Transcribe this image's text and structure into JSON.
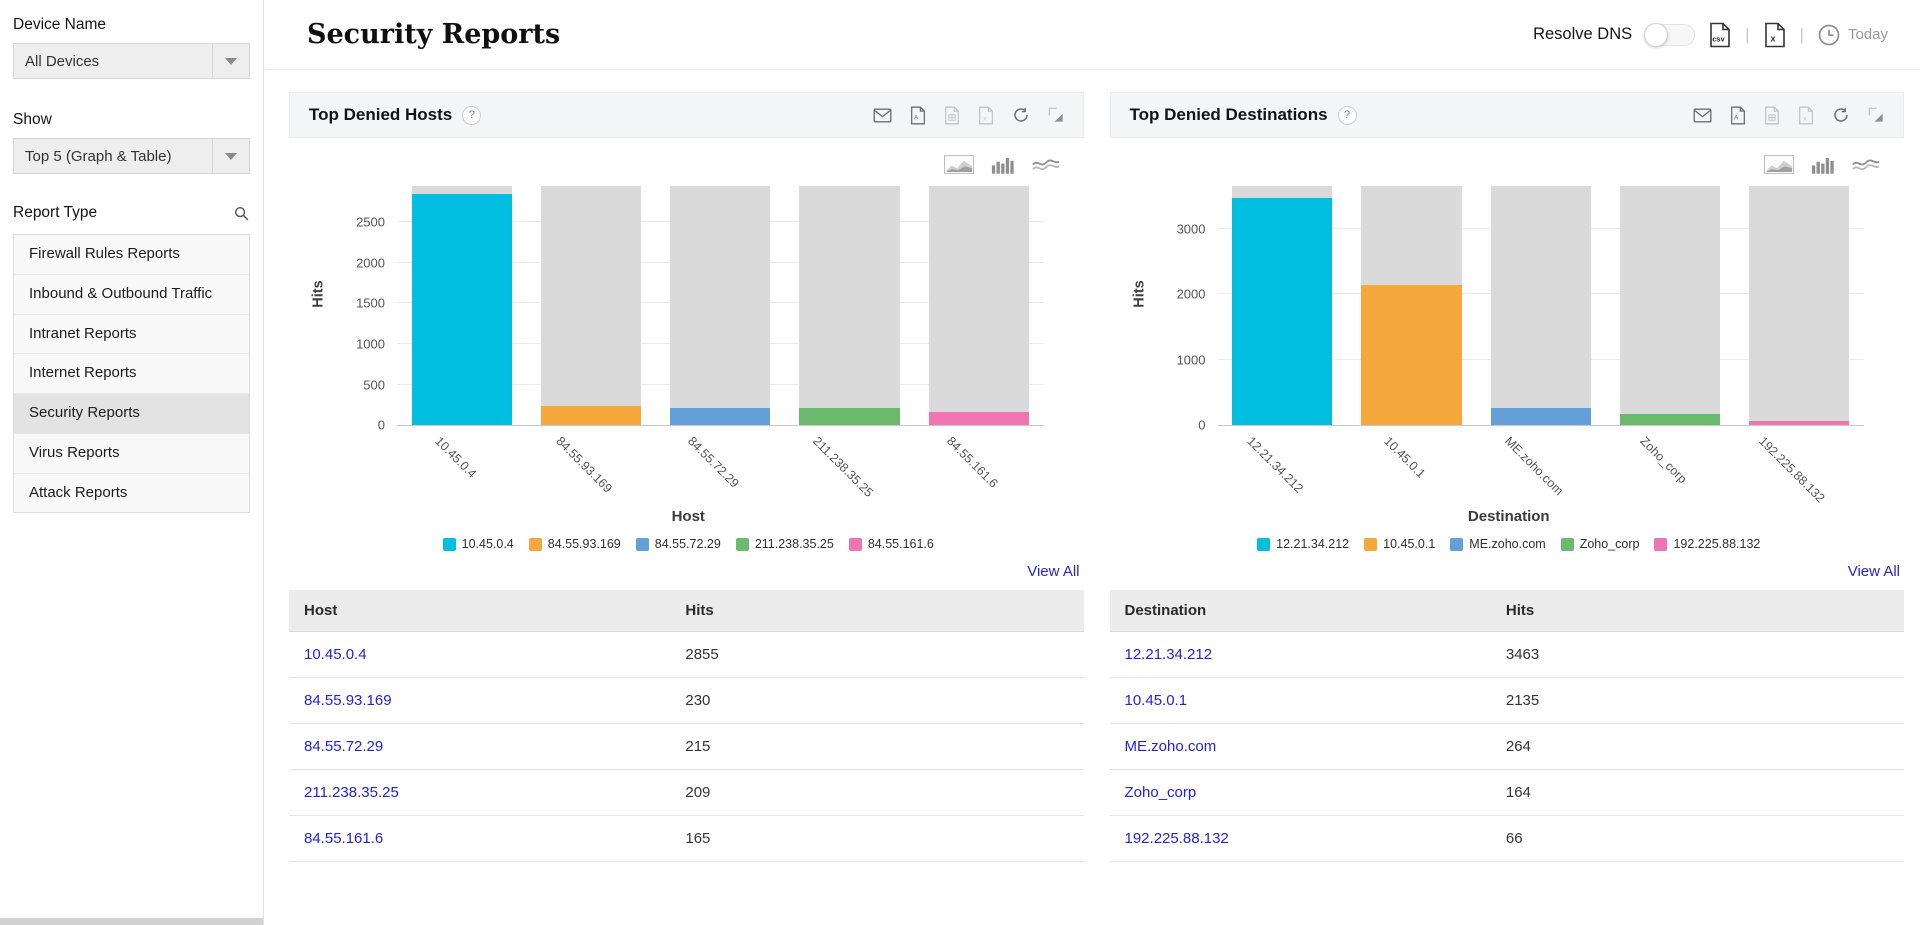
{
  "colors": {
    "series": [
      "#00bee0",
      "#f5a83c",
      "#64a0d8",
      "#6abb6e",
      "#ef74b2"
    ],
    "bar_track": "#dadada",
    "link": "#2222df",
    "panel_header_bg": "#f4f5f7",
    "selected_item_bg": "#e3e3e3"
  },
  "sidebar": {
    "device_label": "Device Name",
    "device_value": "All Devices",
    "show_label": "Show",
    "show_value": "Top 5 (Graph & Table)",
    "report_type_label": "Report Type",
    "selected_report": "Security Reports",
    "report_types": [
      "Firewall Rules Reports",
      "Inbound & Outbound Traffic",
      "Intranet Reports",
      "Internet Reports",
      "Security Reports",
      "Virus Reports",
      "Attack Reports"
    ]
  },
  "header": {
    "title": "Security Reports",
    "resolve_dns_label": "Resolve DNS",
    "today_label": "Today"
  },
  "icons": [
    "search-icon",
    "chevron-down-icon",
    "csv-export-icon",
    "xls-export-icon",
    "clock-icon",
    "email-icon",
    "pdf-export-icon",
    "doc-export-icon",
    "refresh-icon",
    "resize-icon",
    "area-chart-icon",
    "bar-chart-icon",
    "line-chart-icon",
    "help-icon",
    "toggle-switch"
  ],
  "panels": [
    {
      "title": "Top Denied Hosts",
      "help": "?",
      "view_all": "View All",
      "chart_data": {
        "type": "bar",
        "title": "Top Denied Hosts",
        "xlabel": "Host",
        "ylabel": "Hits",
        "categories": [
          "10.45.0.4",
          "84.55.93.169",
          "84.55.72.29",
          "211.238.35.25",
          "84.55.161.6"
        ],
        "values": [
          2855,
          230,
          215,
          209,
          165
        ],
        "ylim": [
          0,
          2950
        ],
        "yticks": [
          0,
          500,
          1000,
          1500,
          2000,
          2500
        ],
        "colors": [
          "#00bee0",
          "#f5a83c",
          "#64a0d8",
          "#6abb6e",
          "#ef74b2"
        ],
        "grid": true,
        "legend_position": "bottom",
        "background_bars": true
      },
      "table": {
        "columns": [
          "Host",
          "Hits"
        ],
        "rows": [
          [
            "10.45.0.4",
            "2855"
          ],
          [
            "84.55.93.169",
            "230"
          ],
          [
            "84.55.72.29",
            "215"
          ],
          [
            "211.238.35.25",
            "209"
          ],
          [
            "84.55.161.6",
            "165"
          ]
        ]
      }
    },
    {
      "title": "Top Denied Destinations",
      "help": "?",
      "view_all": "View All",
      "chart_data": {
        "type": "bar",
        "title": "Top Denied Destinations",
        "xlabel": "Destination",
        "ylabel": "Hits",
        "categories": [
          "12.21.34.212",
          "10.45.0.1",
          "ME.zoho.com",
          "Zoho_corp",
          "192.225.88.132"
        ],
        "values": [
          3463,
          2135,
          264,
          164,
          66
        ],
        "ylim": [
          0,
          3650
        ],
        "yticks": [
          0,
          1000,
          2000,
          3000
        ],
        "colors": [
          "#00bee0",
          "#f5a83c",
          "#64a0d8",
          "#6abb6e",
          "#ef74b2"
        ],
        "grid": true,
        "legend_position": "bottom",
        "background_bars": true
      },
      "table": {
        "columns": [
          "Destination",
          "Hits"
        ],
        "rows": [
          [
            "12.21.34.212",
            "3463"
          ],
          [
            "10.45.0.1",
            "2135"
          ],
          [
            "ME.zoho.com",
            "264"
          ],
          [
            "Zoho_corp",
            "164"
          ],
          [
            "192.225.88.132",
            "66"
          ]
        ]
      }
    }
  ]
}
